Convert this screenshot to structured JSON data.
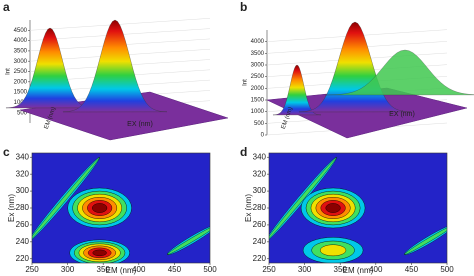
{
  "chart_data": [
    {
      "type": "surface3d",
      "panel": "a",
      "xlabel": "EX (nm)",
      "ylabel": "EM (nm)",
      "zlabel": "Int",
      "zlim": [
        0,
        5000
      ],
      "zticks": [
        500,
        1000,
        1500,
        2000,
        2500,
        3000,
        3500,
        4000,
        4500
      ]
    },
    {
      "type": "surface3d",
      "panel": "b",
      "xlabel": "EX (nm)",
      "ylabel": "EM (nm)",
      "zlabel": "Int",
      "zlim": [
        0,
        4500
      ],
      "zticks": [
        0,
        500,
        1000,
        1500,
        2000,
        2500,
        3000,
        3500,
        4000
      ]
    },
    {
      "type": "contour",
      "panel": "c",
      "xlabel": "EM (nm)",
      "ylabel": "Ex (nm)",
      "xlim": [
        250,
        500
      ],
      "xticks": [
        250,
        300,
        350,
        400,
        450,
        500
      ],
      "ylim": [
        215,
        345
      ],
      "yticks": [
        220,
        240,
        260,
        280,
        300,
        320,
        340
      ],
      "peaks": {
        "x": [
          345,
          345
        ],
        "y": [
          280,
          227
        ]
      }
    },
    {
      "type": "contour",
      "panel": "d",
      "xlabel": "EM (nm)",
      "ylabel": "Ex (nm)",
      "xlim": [
        250,
        500
      ],
      "xticks": [
        250,
        300,
        350,
        400,
        450,
        500
      ],
      "ylim": [
        215,
        345
      ],
      "yticks": [
        220,
        240,
        260,
        280,
        300,
        320,
        340
      ],
      "peaks": {
        "x": [
          340,
          340
        ],
        "y": [
          280,
          230
        ]
      }
    }
  ]
}
